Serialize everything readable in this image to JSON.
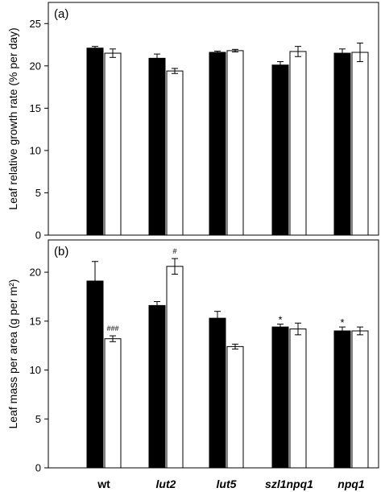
{
  "chart_data": [
    {
      "type": "bar",
      "panel_label": "(a)",
      "ylabel": "Leaf relative growth rate (% per day)",
      "categories": [
        "wt",
        "lut2",
        "lut5",
        "szl1npq1",
        "npq1"
      ],
      "ylim": [
        0,
        27.5
      ],
      "yticks": [
        0,
        5,
        10,
        15,
        20,
        25
      ],
      "series": [
        {
          "color": "#000000",
          "values": [
            22.1,
            20.9,
            21.6,
            20.1,
            21.5
          ],
          "errors": [
            0.2,
            0.5,
            0.15,
            0.4,
            0.5
          ]
        },
        {
          "color": "#ffffff",
          "values": [
            21.5,
            19.4,
            21.8,
            21.7,
            21.6
          ],
          "errors": [
            0.5,
            0.3,
            0.15,
            0.6,
            1.1
          ]
        }
      ],
      "annotations": []
    },
    {
      "type": "bar",
      "panel_label": "(b)",
      "ylabel": "Leaf mass per area (g per m²)",
      "categories": [
        "wt",
        "lut2",
        "lut5",
        "szl1npq1",
        "npq1"
      ],
      "ylim": [
        0,
        23.3
      ],
      "yticks": [
        0,
        5,
        10,
        15,
        20
      ],
      "series": [
        {
          "color": "#000000",
          "values": [
            19.1,
            16.6,
            15.3,
            14.4,
            14.0
          ],
          "errors": [
            2.0,
            0.4,
            0.7,
            0.3,
            0.4
          ]
        },
        {
          "color": "#ffffff",
          "values": [
            13.2,
            20.6,
            12.4,
            14.2,
            14.0
          ],
          "errors": [
            0.3,
            0.8,
            0.25,
            0.6,
            0.4
          ]
        }
      ],
      "annotations": [
        {
          "category": "wt",
          "series": 1,
          "text": "###"
        },
        {
          "category": "lut2",
          "series": 1,
          "text": "#"
        },
        {
          "category": "szl1npq1",
          "series": 0,
          "text": "*"
        },
        {
          "category": "npq1",
          "series": 0,
          "text": "*"
        }
      ]
    }
  ]
}
